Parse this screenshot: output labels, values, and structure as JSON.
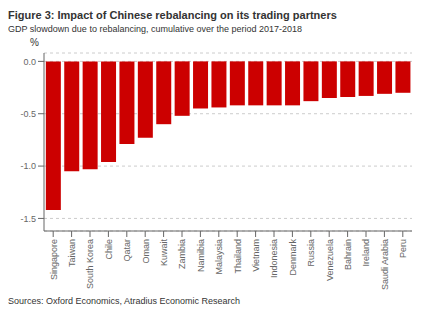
{
  "chart_data": {
    "type": "bar",
    "title": "Figure 3: Impact of Chinese rebalancing on its trading partners",
    "subtitle": "GDP slowdown due to rebalancing, cumulative over the period 2017-2018",
    "ylabel": "%",
    "source": "Sources: Oxford Economics, Atradius Economic Research",
    "categories": [
      "Singapore",
      "Taiwan",
      "South Korea",
      "Chile",
      "Qatar",
      "Oman",
      "Kuwait",
      "Zambia",
      "Namibia",
      "Malaysia",
      "Thailand",
      "Vietnam",
      "Indonesia",
      "Denmark",
      "Russia",
      "Venezuela",
      "Bahrain",
      "Ireland",
      "Saudi Arabia",
      "Peru"
    ],
    "values": [
      -1.42,
      -1.05,
      -1.03,
      -0.96,
      -0.79,
      -0.73,
      -0.6,
      -0.52,
      -0.45,
      -0.44,
      -0.42,
      -0.42,
      -0.42,
      -0.42,
      -0.38,
      -0.35,
      -0.34,
      -0.33,
      -0.31,
      -0.3
    ],
    "color": "#cc0000",
    "ylim": [
      -1.62,
      0.08
    ],
    "yticks": [
      {
        "value": 0.0,
        "label": "0.0"
      },
      -0.5,
      {
        "value": -1.0,
        "label": "-1.0"
      },
      -1.5
    ],
    "grid": true
  }
}
